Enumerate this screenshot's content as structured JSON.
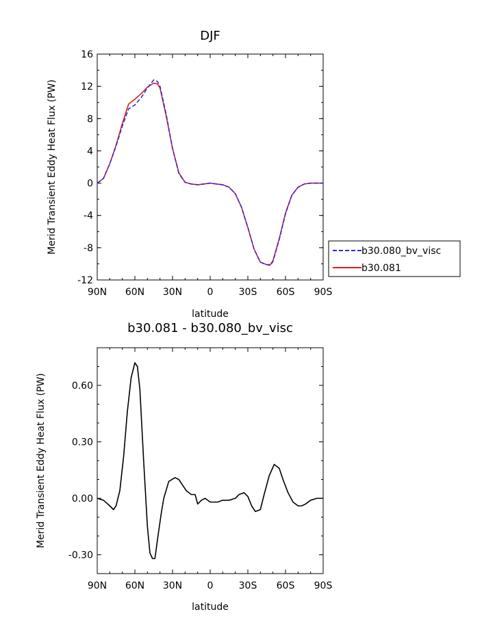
{
  "chart_data": [
    {
      "type": "line",
      "title": "DJF",
      "xlabel": "latitude",
      "ylabel": "Merid Transient Eddy Heat Flux (PW)",
      "x_categories": [
        "90N",
        "60N",
        "30N",
        "0",
        "30S",
        "60S",
        "90S"
      ],
      "xlim": [
        90,
        -90
      ],
      "ylim": [
        -12,
        16
      ],
      "yticks": [
        "16",
        "12",
        "8",
        "4",
        "0",
        "-4",
        "-8",
        "-12"
      ],
      "ytick_values": [
        16,
        12,
        8,
        4,
        0,
        -4,
        -8,
        -12
      ],
      "legend": {
        "placement": "right"
      },
      "series": [
        {
          "name": "b30.080_bv_visc",
          "color": "#2b2bd9",
          "dash": "dashed",
          "x": [
            90,
            85,
            80,
            75,
            70,
            65,
            60,
            55,
            50,
            45,
            42,
            40,
            35,
            30,
            25,
            20,
            15,
            10,
            5,
            0,
            -5,
            -10,
            -15,
            -20,
            -25,
            -30,
            -35,
            -40,
            -45,
            -48,
            -50,
            -55,
            -60,
            -65,
            -70,
            -75,
            -80,
            -85,
            -90
          ],
          "y": [
            0,
            0.6,
            2.4,
            4.6,
            7.1,
            9.2,
            9.7,
            10.6,
            11.8,
            12.8,
            12.6,
            12.0,
            8.5,
            4.3,
            1.2,
            0.1,
            -0.1,
            -0.2,
            -0.1,
            0.0,
            -0.1,
            -0.2,
            -0.5,
            -1.3,
            -3.0,
            -5.5,
            -8.2,
            -9.8,
            -10.1,
            -10.2,
            -9.7,
            -7.0,
            -3.8,
            -1.5,
            -0.5,
            -0.1,
            0.0,
            0.0,
            0.0
          ]
        },
        {
          "name": "b30.081",
          "color": "#e31a1c",
          "dash": "solid",
          "x": [
            90,
            85,
            80,
            75,
            70,
            65,
            60,
            55,
            50,
            45,
            42,
            40,
            35,
            30,
            25,
            20,
            15,
            10,
            5,
            0,
            -5,
            -10,
            -15,
            -20,
            -25,
            -30,
            -35,
            -40,
            -45,
            -48,
            -50,
            -55,
            -60,
            -65,
            -70,
            -75,
            -80,
            -85,
            -90
          ],
          "y": [
            0,
            0.6,
            2.4,
            4.7,
            7.4,
            9.8,
            10.4,
            11.1,
            11.9,
            12.4,
            12.3,
            11.8,
            8.3,
            4.3,
            1.3,
            0.1,
            -0.1,
            -0.2,
            -0.1,
            0.0,
            -0.1,
            -0.2,
            -0.5,
            -1.3,
            -3.0,
            -5.5,
            -8.2,
            -9.8,
            -10.1,
            -10.1,
            -9.6,
            -6.9,
            -3.7,
            -1.5,
            -0.5,
            -0.1,
            0.0,
            0.0,
            0.0
          ]
        }
      ]
    },
    {
      "type": "line",
      "title": "b30.081 - b30.080_bv_visc",
      "xlabel": "latitude",
      "ylabel": "Merid Transient Eddy Heat Flux (PW)",
      "x_categories": [
        "90N",
        "60N",
        "30N",
        "0",
        "30S",
        "60S",
        "90S"
      ],
      "xlim": [
        90,
        -90
      ],
      "ylim": [
        -0.4,
        0.8
      ],
      "yticks": [
        "0.60",
        "0.30",
        "0.00",
        "-0.30"
      ],
      "ytick_values": [
        0.6,
        0.3,
        0.0,
        -0.3
      ],
      "series": [
        {
          "color": "#000000",
          "dash": "solid",
          "x": [
            90,
            85,
            80,
            77,
            75,
            72,
            69,
            66,
            63,
            60,
            58,
            56,
            53,
            50,
            48,
            46,
            44,
            42,
            39,
            37,
            33,
            28,
            25,
            22,
            19,
            15,
            12,
            10,
            7,
            4,
            0,
            -3,
            -6,
            -10,
            -15,
            -20,
            -23,
            -27,
            -30,
            -33,
            -36,
            -40,
            -43,
            -47,
            -51,
            -55,
            -58,
            -62,
            -66,
            -70,
            -73,
            -76,
            -80,
            -85,
            -90
          ],
          "y": [
            0,
            -0.01,
            -0.04,
            -0.06,
            -0.04,
            0.04,
            0.22,
            0.46,
            0.64,
            0.72,
            0.7,
            0.58,
            0.2,
            -0.15,
            -0.29,
            -0.32,
            -0.32,
            -0.22,
            -0.08,
            0.0,
            0.09,
            0.11,
            0.1,
            0.07,
            0.04,
            0.02,
            0.02,
            -0.03,
            -0.01,
            0.0,
            -0.02,
            -0.02,
            -0.02,
            -0.01,
            -0.01,
            0.0,
            0.02,
            0.03,
            0.01,
            -0.04,
            -0.07,
            -0.06,
            0.02,
            0.12,
            0.18,
            0.16,
            0.1,
            0.03,
            -0.02,
            -0.04,
            -0.04,
            -0.03,
            -0.01,
            0.0,
            0.0
          ]
        }
      ]
    }
  ]
}
